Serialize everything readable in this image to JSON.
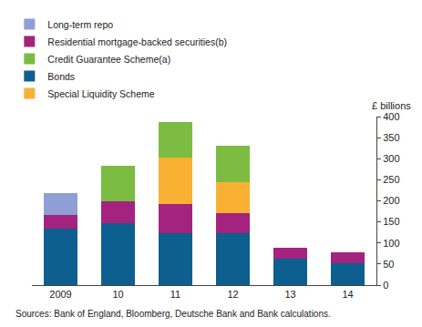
{
  "chart_data": {
    "type": "bar",
    "stacked": true,
    "ylabel": "£ billions",
    "annotations": [
      "Sources: Bank of England, Bloomberg, Deutsche Bank and Bank calculations."
    ],
    "categories": [
      "2009",
      "10",
      "11",
      "12",
      "13",
      "14"
    ],
    "series": [
      {
        "name": "Bonds",
        "color": "#0d5f8f",
        "values": [
          133,
          148,
          123,
          123,
          63,
          52
        ]
      },
      {
        "name": "Residential mortgage-backed securities(b)",
        "color": "#a3237f",
        "values": [
          33,
          50,
          70,
          47,
          25,
          25
        ]
      },
      {
        "name": "Special Liquidity Scheme",
        "color": "#f8b133",
        "values": [
          0,
          0,
          110,
          75,
          0,
          0
        ]
      },
      {
        "name": "Credit Guarantee Scheme(a)",
        "color": "#7cbc42",
        "values": [
          0,
          85,
          85,
          85,
          0,
          0
        ]
      },
      {
        "name": "Long-term repo",
        "color": "#8f9fd6",
        "values": [
          52,
          0,
          0,
          0,
          0,
          0
        ]
      }
    ],
    "ylim": [
      0,
      400
    ],
    "yticks": [
      0,
      50,
      100,
      150,
      200,
      250,
      300,
      350,
      400
    ],
    "grid": false,
    "legend": "top"
  }
}
